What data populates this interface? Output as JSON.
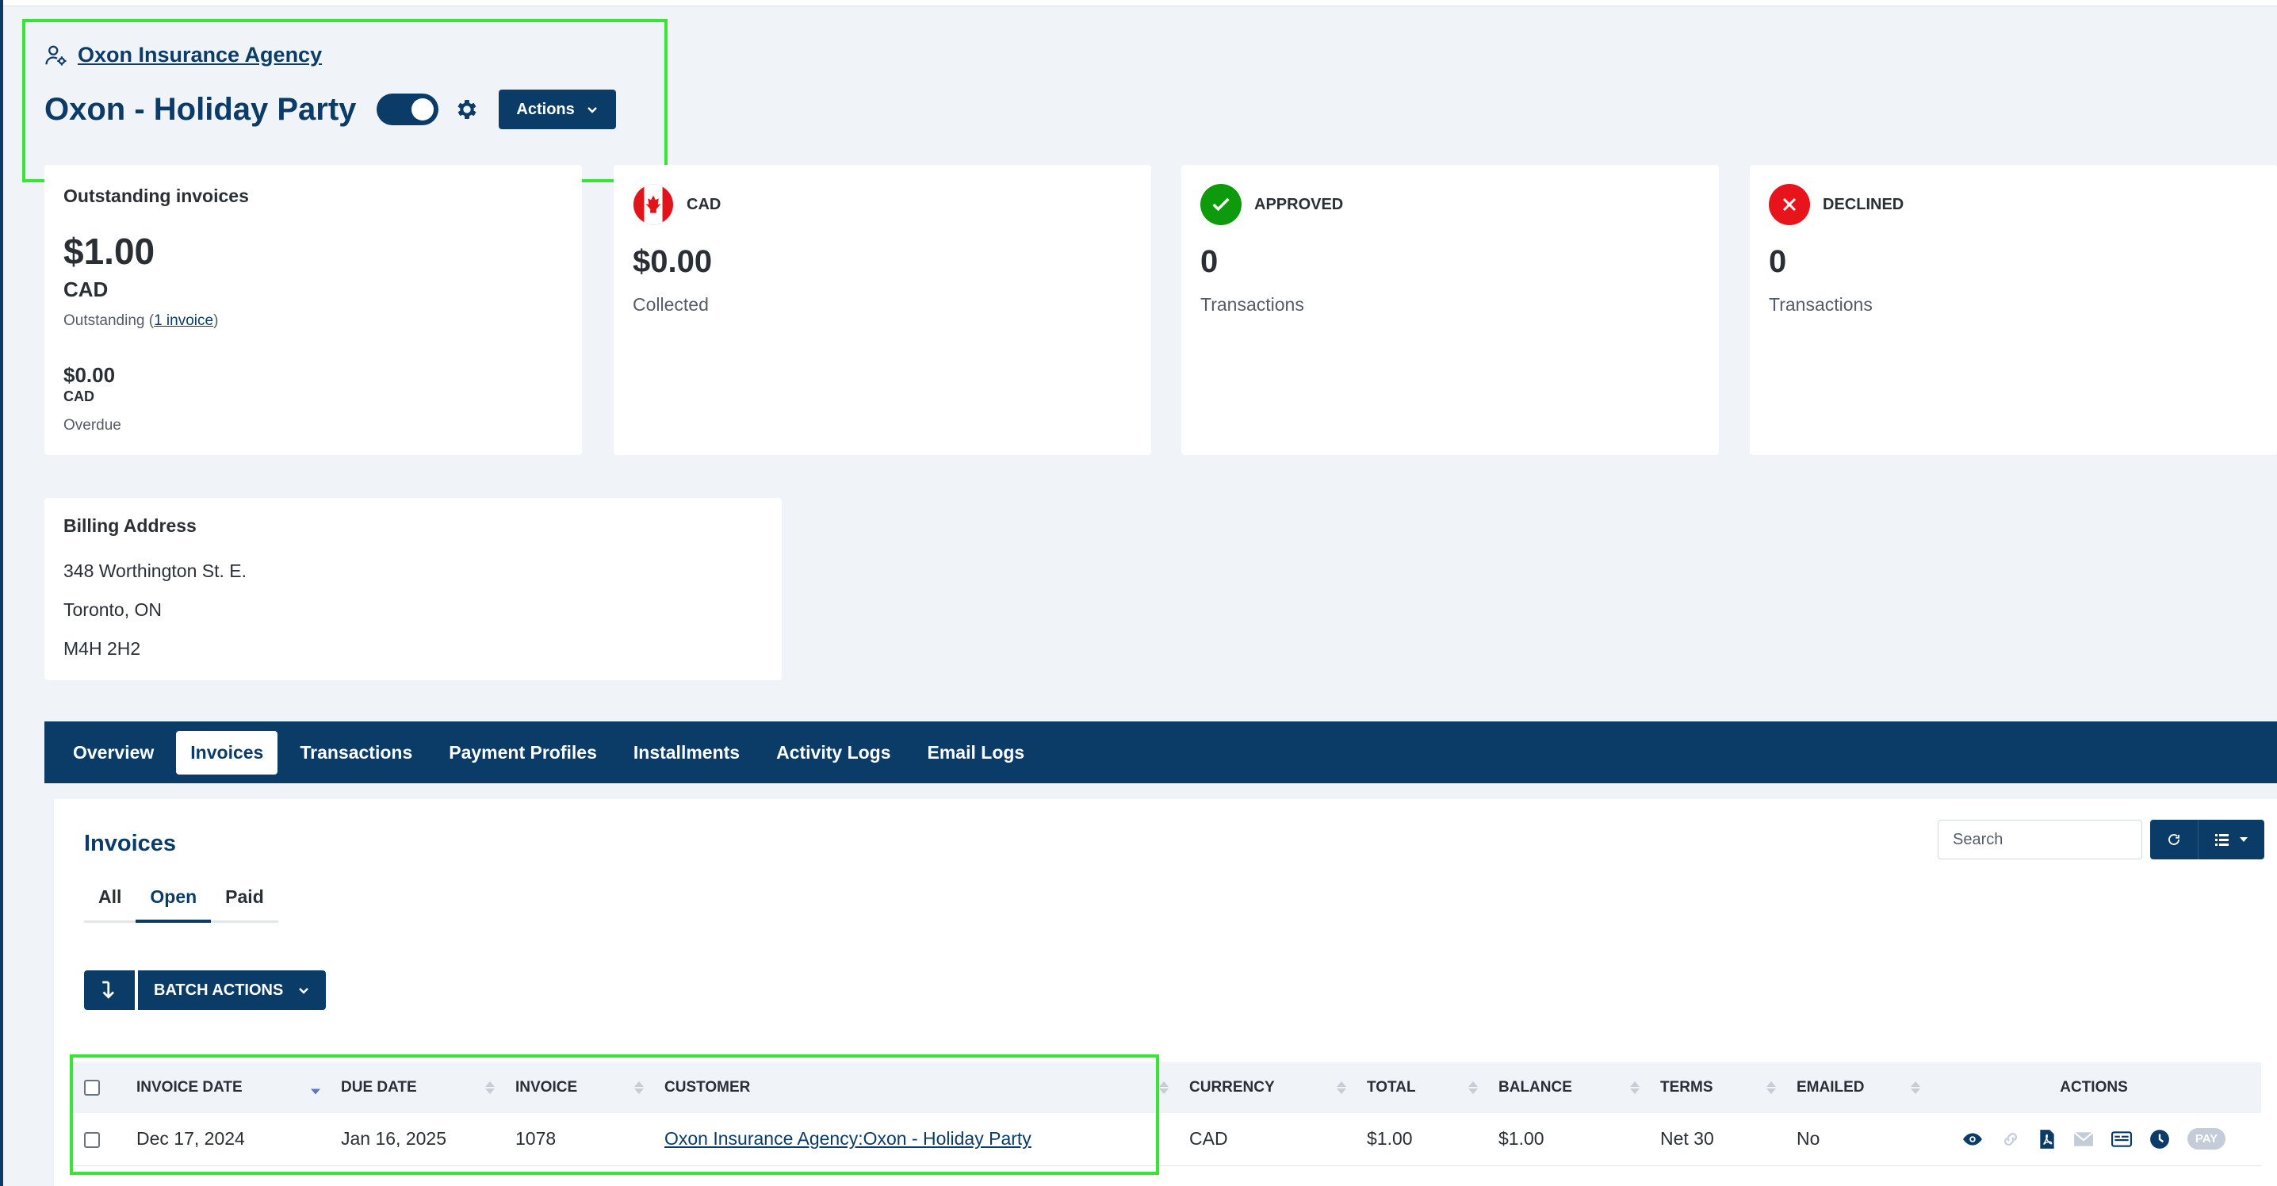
{
  "header": {
    "company_link": "Oxon Insurance Agency",
    "title": "Oxon - Holiday Party",
    "actions_label": "Actions"
  },
  "outstanding_card": {
    "label": "Outstanding invoices",
    "amount": "$1.00",
    "currency": "CAD",
    "outstanding_prefix": "Outstanding (",
    "outstanding_link": "1 invoice",
    "outstanding_suffix": ")",
    "overdue_amount": "$0.00",
    "overdue_currency": "CAD",
    "overdue_label": "Overdue"
  },
  "cad_card": {
    "title": "CAD",
    "value": "$0.00",
    "sub": "Collected"
  },
  "approved_card": {
    "title": "APPROVED",
    "value": "0",
    "sub": "Transactions",
    "color": "#0d9a0d"
  },
  "declined_card": {
    "title": "DECLINED",
    "value": "0",
    "sub": "Transactions",
    "color": "#e8141b"
  },
  "billing": {
    "label": "Billing Address",
    "line1": "348 Worthington St. E.",
    "line2": "Toronto, ON",
    "line3": "M4H 2H2"
  },
  "tabs": [
    "Overview",
    "Invoices",
    "Transactions",
    "Payment Profiles",
    "Installments",
    "Activity Logs",
    "Email Logs"
  ],
  "invoices": {
    "title": "Invoices",
    "subtabs": [
      "All",
      "Open",
      "Paid"
    ],
    "search_placeholder": "Search",
    "batch_label": "BATCH ACTIONS",
    "columns": [
      "INVOICE DATE",
      "DUE DATE",
      "INVOICE",
      "CUSTOMER",
      "CURRENCY",
      "TOTAL",
      "BALANCE",
      "TERMS",
      "EMAILED",
      "ACTIONS"
    ],
    "rows": [
      {
        "invoice_date": "Dec 17, 2024",
        "due_date": "Jan 16, 2025",
        "invoice": "1078",
        "customer": "Oxon Insurance Agency:Oxon - Holiday Party",
        "currency": "CAD",
        "total": "$1.00",
        "balance": "$1.00",
        "terms": "Net 30",
        "emailed": "No",
        "pay_label": "PAY"
      }
    ]
  },
  "colors": {
    "primary": "#0b3c67",
    "highlight": "#35e632",
    "background": "#f0f3f7"
  }
}
